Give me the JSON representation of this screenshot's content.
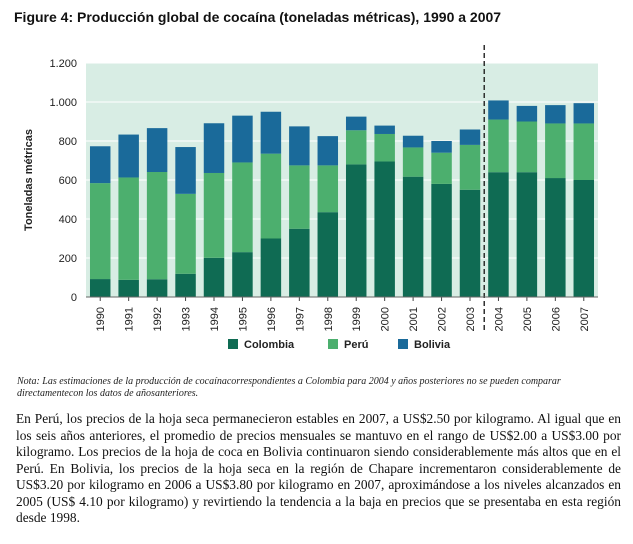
{
  "figure_title": "Figure 4: Producción global de cocaína (toneladas métricas), 1990 a 2007",
  "note": "Nota: Las estimaciones de la producción de cocaínacorrespondientes a Colombia para 2004 y años posteriores no se pueden comparar directamentecon los datos de añosanteriores.",
  "paragraph": "En Perú, los precios de la hoja seca permanecieron estables en 2007, a US$2.50 por kilogramo. Al igual que en los seis años anteriores, el promedio de precios mensuales se mantuvo en el rango de US$2.00 a US$3.00 por kilogramo. Los precios de la hoja de coca en Bolivia continuaron siendo considerablemente más altos que en el Perú.  En Bolivia, los precios de la hoja seca  en la región de Chapare incrementaron considerablemente de US$3.20 por kilogramo en 2006 a US$3.80 por kilogramo en 2007, aproximándose a los niveles alcanzados en 2005 (US$ 4.10 por kilogramo) y revirtiendo la tendencia a la baja en precios que se presentaba en esta región desde 1998.",
  "colors": {
    "colombia": "#0f6b53",
    "peru": "#4caf6e",
    "bolivia": "#1a6a9a",
    "plot_bg": "#d8ede4",
    "grid": "#ffffff",
    "divider": "#222222"
  },
  "chart_data": {
    "type": "bar",
    "stacked": true,
    "title": "Figure 4: Producción global de cocaína (toneladas métricas), 1990 a 2007",
    "xlabel": "",
    "ylabel": "Toneladas métricas",
    "ylim": [
      0,
      1200
    ],
    "yticks": [
      0,
      200,
      400,
      600,
      800,
      1000,
      1200
    ],
    "ytick_labels": [
      "0",
      "200",
      "400",
      "600",
      "800",
      "1.000",
      "1.200"
    ],
    "grid": true,
    "legend_position": "bottom",
    "divider_after": "2003",
    "categories": [
      "1990",
      "1991",
      "1992",
      "1993",
      "1994",
      "1995",
      "1996",
      "1997",
      "1998",
      "1999",
      "2000",
      "2001",
      "2002",
      "2003",
      "2004",
      "2005",
      "2006",
      "2007"
    ],
    "series": [
      {
        "name": "Colombia",
        "values": [
          92,
          88,
          91,
          119,
          201,
          230,
          300,
          350,
          435,
          680,
          695,
          617,
          580,
          550,
          640,
          640,
          610,
          600
        ]
      },
      {
        "name": "Perú",
        "values": [
          492,
          525,
          550,
          410,
          435,
          460,
          435,
          325,
          240,
          175,
          141,
          150,
          160,
          230,
          270,
          260,
          280,
          290
        ]
      },
      {
        "name": "Bolivia",
        "values": [
          189,
          220,
          225,
          240,
          255,
          240,
          215,
          200,
          150,
          70,
          43,
          60,
          60,
          79,
          98,
          80,
          94,
          104
        ]
      }
    ]
  }
}
